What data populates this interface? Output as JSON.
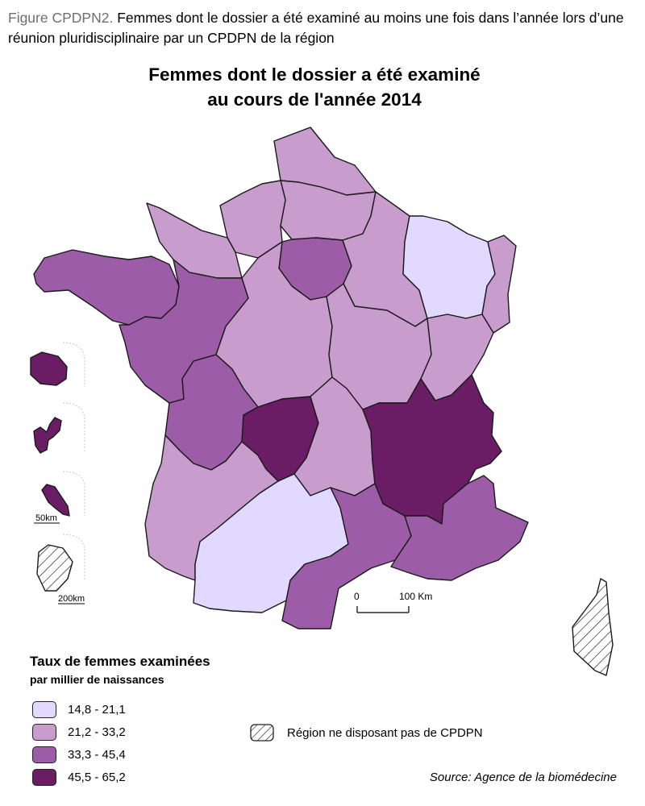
{
  "caption": {
    "label": "Figure CPDPN2.",
    "text": " Femmes dont le dossier a été examiné au moins une fois dans l’année lors d’une réunion pluridisciplinaire par un CPDPN de la région"
  },
  "title_line1": "Femmes dont le dossier a été examiné",
  "title_line2": "au cours de l'année 2014",
  "legend": {
    "title": "Taux de femmes examinées",
    "subtitle": "par millier de naissances",
    "classes": [
      {
        "label": "14,8 - 21,1",
        "color": "#e1d9ff"
      },
      {
        "label": "21,2 - 33,2",
        "color": "#c89dcd"
      },
      {
        "label": "33,3 - 45,4",
        "color": "#9d5ca7"
      },
      {
        "label": "45,5 - 65,2",
        "color": "#6a1d64"
      }
    ],
    "no_data_label": "Région ne disposant pas de CPDPN"
  },
  "scale_bar": {
    "start": "0",
    "end": "100 Km"
  },
  "inset_scales": {
    "small": "50km",
    "large": "200km"
  },
  "source": "Source: Agence de la biomédecine",
  "regions": [
    {
      "name": "Nord-Pas-de-Calais",
      "class": 1
    },
    {
      "name": "Picardie",
      "class": 1
    },
    {
      "name": "Haute-Normandie",
      "class": 1
    },
    {
      "name": "Basse-Normandie",
      "class": 1
    },
    {
      "name": "Bretagne",
      "class": 2
    },
    {
      "name": "Pays de la Loire",
      "class": 2
    },
    {
      "name": "Île-de-France",
      "class": 2
    },
    {
      "name": "Centre",
      "class": 1
    },
    {
      "name": "Champagne-Ardenne",
      "class": 1
    },
    {
      "name": "Lorraine",
      "class": 0
    },
    {
      "name": "Alsace",
      "class": 1
    },
    {
      "name": "Bourgogne",
      "class": 1
    },
    {
      "name": "Franche-Comté",
      "class": 1
    },
    {
      "name": "Poitou-Charentes",
      "class": 2
    },
    {
      "name": "Limousin",
      "class": 3
    },
    {
      "name": "Auvergne",
      "class": 1
    },
    {
      "name": "Rhône-Alpes",
      "class": 3
    },
    {
      "name": "Aquitaine",
      "class": 1
    },
    {
      "name": "Midi-Pyrénées",
      "class": 0
    },
    {
      "name": "Languedoc-Roussillon",
      "class": 2
    },
    {
      "name": "Provence-Alpes-Côte d'Azur",
      "class": 2
    },
    {
      "name": "Corse",
      "class": -1
    },
    {
      "name": "La Réunion",
      "class": 3
    },
    {
      "name": "Guadeloupe",
      "class": 3
    },
    {
      "name": "Martinique",
      "class": 3
    },
    {
      "name": "Guyane",
      "class": -1
    }
  ]
}
